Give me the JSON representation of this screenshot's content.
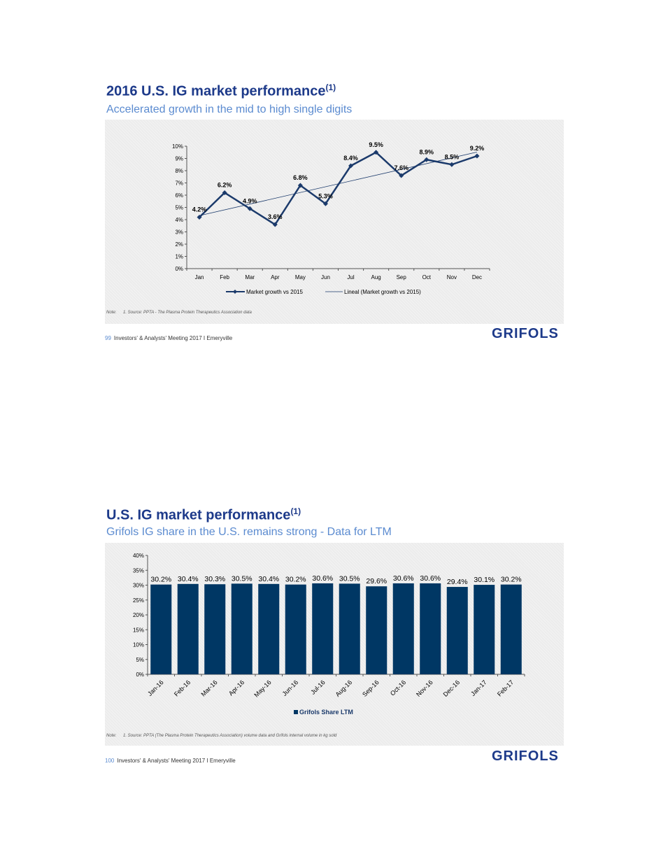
{
  "slides": [
    {
      "title": "2016 U.S. IG market performance",
      "title_sup": "(1)",
      "subtitle": "Accelerated growth in the mid to high single digits",
      "note_label": "Note:",
      "note_text": "1. Source: PPTA - The Plasma Protein Therapeutics Association data",
      "page": "99",
      "footer": "Investors' & Analysts' Meeting 2017 I Emeryville",
      "logo": "GRIFOLS"
    },
    {
      "title": "U.S. IG market performance",
      "title_sup": "(1)",
      "subtitle": "Grifols IG share in the U.S. remains strong - Data for LTM",
      "note_label": "Note:",
      "note_text": "1. Source: PPTA (The Plasma Protein Therapeutics Association) volume data and Grifols internal volume in kg sold",
      "page": "100",
      "footer": "Investors' & Analysts' Meeting 2017 I Emeryville",
      "logo": "GRIFOLS"
    }
  ],
  "chart_data": [
    {
      "type": "line",
      "categories": [
        "Jan",
        "Feb",
        "Mar",
        "Apr",
        "May",
        "Jun",
        "Jul",
        "Aug",
        "Sep",
        "Oct",
        "Nov",
        "Dec"
      ],
      "series": [
        {
          "name": "Market growth vs 2015",
          "values": [
            4.2,
            6.2,
            4.9,
            3.6,
            6.8,
            5.3,
            8.4,
            9.5,
            7.6,
            8.9,
            8.5,
            9.2
          ],
          "data_labels": [
            "4.2%",
            "6.2%",
            "4.9%",
            "3.6%",
            "6.8%",
            "5.3%",
            "8.4%",
            "9.5%",
            "7.6%",
            "8.9%",
            "8.5%",
            "9.2%"
          ]
        },
        {
          "name": "Lineal (Market growth vs 2015)",
          "trendline": true
        }
      ],
      "ylim": [
        0,
        10
      ],
      "yticks": [
        "0%",
        "1%",
        "2%",
        "3%",
        "4%",
        "5%",
        "6%",
        "7%",
        "8%",
        "9%",
        "10%"
      ],
      "legend": "bottom",
      "colors": {
        "line": "#1b3a6b",
        "trend": "#1b3a6b"
      }
    },
    {
      "type": "bar",
      "categories": [
        "Jan-16",
        "Feb-16",
        "Mar-16",
        "Apr-16",
        "May-16",
        "Jun-16",
        "Jul-16",
        "Aug-16",
        "Sep-16",
        "Oct-16",
        "Nov-16",
        "Dec-16",
        "Jan-17",
        "Feb-17"
      ],
      "series": [
        {
          "name": "Grifols Share LTM",
          "values": [
            30.2,
            30.4,
            30.3,
            30.5,
            30.4,
            30.2,
            30.6,
            30.5,
            29.6,
            30.6,
            30.6,
            29.4,
            30.1,
            30.2
          ],
          "data_labels": [
            "30.2%",
            "30.4%",
            "30.3%",
            "30.5%",
            "30.4%",
            "30.2%",
            "30.6%",
            "30.5%",
            "29.6%",
            "30.6%",
            "30.6%",
            "29.4%",
            "30.1%",
            "30.2%"
          ]
        }
      ],
      "ylim": [
        0,
        40
      ],
      "yticks": [
        "0%",
        "5%",
        "10%",
        "15%",
        "20%",
        "25%",
        "30%",
        "35%",
        "40%"
      ],
      "legend": "bottom",
      "colors": {
        "bar": "#003764"
      }
    }
  ]
}
